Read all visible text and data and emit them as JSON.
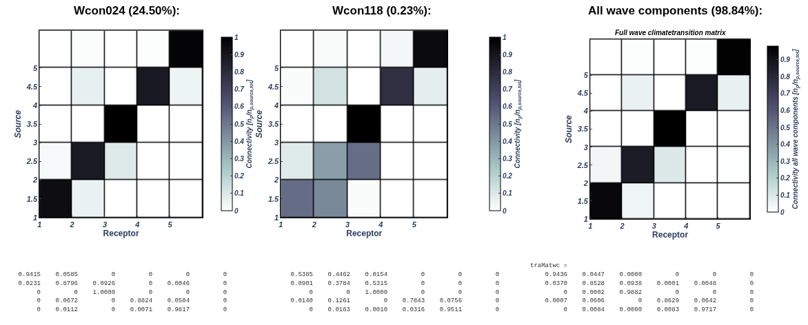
{
  "chart_data": [
    {
      "type": "heatmap",
      "title": "Wcon024 (24.50%):",
      "xlabel": "Receptor",
      "ylabel": "Source",
      "clabel": "Connectivity [n$_{p}$/n$_{p,source,tot}$]",
      "cells": [
        [
          0,
          0.0112,
          0,
          0.0071,
          0.9817
        ],
        [
          0,
          0.0672,
          0,
          0.8824,
          0.0504
        ],
        [
          0,
          0,
          1.0,
          0,
          0
        ],
        [
          0.0231,
          0.8796,
          0.0926,
          0,
          0.0046
        ],
        [
          0.9415,
          0.0585,
          0,
          0,
          0
        ]
      ],
      "xlim": [
        1,
        6
      ],
      "ylim": [
        1,
        6
      ],
      "xticks": [
        1,
        2,
        3,
        4,
        5
      ],
      "yticks": [
        1,
        1.5,
        2,
        2.5,
        3,
        3.5,
        4,
        4.5,
        5
      ],
      "clim": [
        0,
        1
      ],
      "cticks": [
        0,
        0.1,
        0.2,
        0.3,
        0.4,
        0.5,
        0.6,
        0.7,
        0.8,
        0.9,
        1
      ],
      "annotations": [
        "    0.9415    0.0585         0         0         0         0",
        "    0.0231    0.8796    0.0926         0    0.0046         0",
        "         0         0    1.0000         0         0         0",
        "         0    0.0672         0    0.8824    0.0504         0",
        "         0    0.0112         0    0.0071    0.9817         0"
      ]
    },
    {
      "type": "heatmap",
      "title": "Wcon118 (0.23%):",
      "xlabel": "Receptor",
      "ylabel": "Source",
      "clabel": "Connectivity [n$_{p}$/n$_{p,source,tot}$]",
      "cells": [
        [
          0,
          0.0163,
          0.001,
          0.0316,
          0.9511
        ],
        [
          0.014,
          0.1261,
          0,
          0.7843,
          0.0756
        ],
        [
          0,
          0,
          1.0,
          0,
          0
        ],
        [
          0.0901,
          0.3784,
          0.5315,
          0,
          0
        ],
        [
          0.5385,
          0.4462,
          0.0154,
          0,
          0
        ]
      ],
      "xlim": [
        1,
        6
      ],
      "ylim": [
        1,
        6
      ],
      "xticks": [
        1,
        2,
        3,
        4,
        5
      ],
      "yticks": [
        1,
        1.5,
        2,
        2.5,
        3,
        3.5,
        4,
        4.5,
        5
      ],
      "clim": [
        0,
        1
      ],
      "cticks": [
        0,
        0.1,
        0.2,
        0.3,
        0.4,
        0.5,
        0.6,
        0.7,
        0.8,
        0.9,
        1
      ],
      "annotations": [
        "    0.5385    0.4462    0.0154         0         0         0",
        "    0.0901    0.3784    0.5315         0         0         0",
        "         0         0    1.0000         0         0         0",
        "    0.0140    0.1261         0    0.7843    0.0756         0",
        "         0    0.0163    0.0010    0.0316    0.9511         0"
      ]
    },
    {
      "type": "heatmap",
      "title": "All wave components (98.84%):",
      "subtitle": "Full wave climatetransition matrix",
      "xlabel": "Receptor",
      "ylabel": "Source",
      "clabel": "Connectivity all wave components [n$_{p}$/n$_{p,source,tot}$]",
      "cells": [
        [
          0,
          0.0084,
          0.0,
          0.0083,
          0.9717
        ],
        [
          0.0007,
          0.0606,
          0,
          0.8629,
          0.0642
        ],
        [
          0,
          0.0002,
          0.9882,
          0,
          0
        ],
        [
          0.037,
          0.8528,
          0.0938,
          0.0001,
          0.0048
        ],
        [
          0.9436,
          0.0447,
          0.0,
          0,
          0
        ]
      ],
      "xlim": [
        1,
        6
      ],
      "ylim": [
        1,
        6
      ],
      "xticks": [
        1,
        2,
        3,
        4,
        5
      ],
      "yticks": [
        1,
        1.5,
        2,
        2.5,
        3,
        3.5,
        4,
        4.5,
        5
      ],
      "clim": [
        0,
        0.98
      ],
      "cticks": [
        0,
        0.1,
        0.2,
        0.3,
        0.4,
        0.5,
        0.6,
        0.7,
        0.8,
        0.9
      ],
      "annotations": [
        "traMatwc =",
        "    0.9436    0.0447    0.0000         0         0         0",
        "    0.0370    0.8528    0.0938    0.0001    0.0048         0",
        "         0    0.0002    0.9882         0         0         0",
        "    0.0007    0.0606         0    0.8629    0.0642         0",
        "         0    0.0084    0.0000    0.0083    0.9717         0"
      ]
    }
  ]
}
